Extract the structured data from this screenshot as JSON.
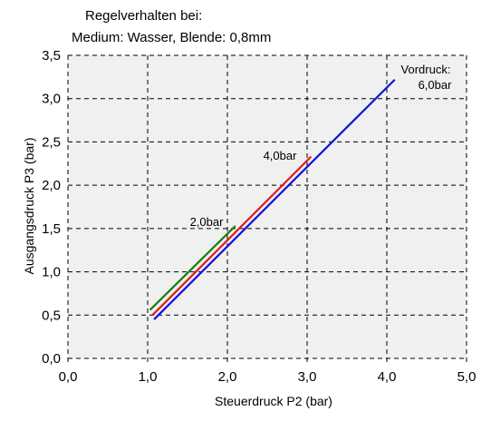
{
  "chart_data": {
    "type": "line",
    "title_lines": [
      "Regelverhalten bei:",
      "Medium: Wasser, Blende: 0,8mm"
    ],
    "xlabel": "Steuerdruck P2 (bar)",
    "ylabel": "Ausgangsdruck P3 (bar)",
    "xlim": [
      0,
      5
    ],
    "ylim": [
      0,
      3.5
    ],
    "x_ticks": [
      0,
      1,
      2,
      3,
      4,
      5
    ],
    "y_ticks": [
      0,
      0.5,
      1,
      1.5,
      2,
      2.5,
      3,
      3.5
    ],
    "x_tick_labels": [
      "0,0",
      "1,0",
      "2,0",
      "3,0",
      "4,0",
      "5,0"
    ],
    "y_tick_labels": [
      "0,0",
      "0,5",
      "1,0",
      "1,5",
      "2,0",
      "2,5",
      "3,0",
      "3,5"
    ],
    "grid": true,
    "plot_background": "#f0f0f0",
    "series": [
      {
        "label": "2,0bar",
        "color": "#1a7a1a",
        "x": [
          1.03,
          2.1
        ],
        "y": [
          0.56,
          1.53
        ]
      },
      {
        "label": "4,0bar",
        "color": "#e01b1b",
        "x": [
          1.06,
          3.05
        ],
        "y": [
          0.5,
          2.33
        ]
      },
      {
        "label_lines": [
          "Vordruck:",
          "6,0bar"
        ],
        "color": "#1010e0",
        "x": [
          1.08,
          4.1
        ],
        "y": [
          0.45,
          3.22
        ]
      }
    ]
  }
}
